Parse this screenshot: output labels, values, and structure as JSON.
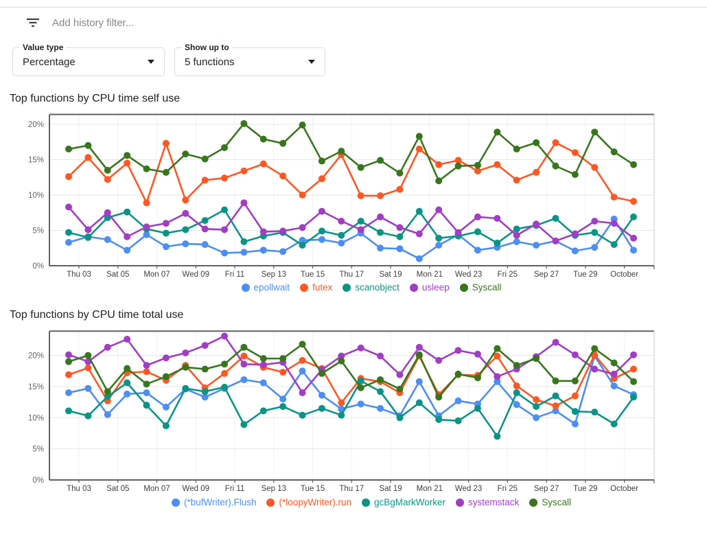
{
  "filter_bar": {
    "icon": "filter-list-icon",
    "placeholder": "Add history filter..."
  },
  "controls": {
    "value_type": {
      "label": "Value type",
      "value": "Percentage"
    },
    "show_up_to": {
      "label": "Show up to",
      "value": "5 functions"
    }
  },
  "chart_data": [
    {
      "type": "line",
      "title": "Top functions by CPU time self use",
      "xlabel": "",
      "ylabel": "",
      "ylim": [
        0,
        21.4
      ],
      "grid": true,
      "legend_position": "bottom",
      "y_tick_labels": [
        "0%",
        "5%",
        "10%",
        "15%",
        "20%"
      ],
      "x_tick_labels": [
        "Thu 03",
        "Sat 05",
        "Mon 07",
        "Wed 09",
        "Fri 11",
        "Sep 13",
        "Tue 15",
        "Thu 17",
        "Sat 19",
        "Mon 21",
        "Wed 23",
        "Fri 25",
        "Sep 27",
        "Tue 29",
        "October"
      ],
      "points_per_series": 30,
      "series": [
        {
          "name": "epollwait",
          "color": "#4D8EF5",
          "values": [
            3.3,
            4.1,
            3.7,
            2.2,
            4.4,
            2.7,
            3.1,
            3.0,
            1.8,
            1.9,
            2.2,
            2.0,
            3.6,
            3.7,
            3.2,
            4.6,
            2.5,
            2.4,
            1.0,
            2.9,
            4.4,
            2.2,
            2.6,
            3.4,
            2.9,
            3.5,
            2.1,
            2.6,
            6.6,
            2.2
          ]
        },
        {
          "name": "futex",
          "color": "#FF5722",
          "values": [
            12.6,
            15.3,
            12.2,
            14.5,
            8.9,
            17.3,
            9.3,
            12.1,
            12.4,
            13.4,
            14.4,
            12.7,
            10.0,
            12.3,
            15.7,
            9.9,
            9.9,
            10.8,
            16.5,
            14.3,
            14.9,
            13.4,
            14.3,
            12.1,
            13.2,
            17.4,
            16.0,
            13.9,
            9.7,
            9.1
          ]
        },
        {
          "name": "scanobject",
          "color": "#0A9486",
          "values": [
            4.7,
            4.0,
            6.8,
            7.6,
            5.2,
            4.6,
            5.1,
            6.4,
            7.9,
            3.4,
            4.2,
            4.7,
            2.9,
            4.9,
            4.3,
            6.3,
            4.7,
            4.1,
            7.7,
            3.9,
            4.2,
            4.8,
            3.2,
            5.2,
            5.7,
            6.7,
            4.3,
            4.7,
            3.0,
            6.9
          ]
        },
        {
          "name": "usleep",
          "color": "#A13DC6",
          "values": [
            8.3,
            5.1,
            7.5,
            4.1,
            5.5,
            6.0,
            7.4,
            5.2,
            5.1,
            8.9,
            4.8,
            4.9,
            5.4,
            7.7,
            6.3,
            5.1,
            6.9,
            5.4,
            4.5,
            7.9,
            4.7,
            6.9,
            6.7,
            4.3,
            5.9,
            3.5,
            4.5,
            6.3,
            6.0,
            3.9
          ]
        },
        {
          "name": "Syscall",
          "color": "#38761D",
          "values": [
            16.5,
            17.0,
            13.5,
            15.6,
            13.7,
            13.2,
            15.8,
            15.1,
            16.7,
            20.1,
            17.9,
            17.3,
            19.9,
            14.8,
            16.2,
            13.9,
            14.9,
            13.1,
            18.3,
            12.0,
            14.1,
            14.2,
            18.9,
            16.5,
            17.4,
            14.1,
            12.9,
            18.9,
            16.1,
            14.3
          ]
        }
      ]
    },
    {
      "type": "line",
      "title": "Top functions by CPU time total use",
      "xlabel": "",
      "ylabel": "",
      "ylim": [
        0,
        23.9
      ],
      "grid": true,
      "legend_position": "bottom",
      "y_tick_labels": [
        "0%",
        "5%",
        "10%",
        "15%",
        "20%"
      ],
      "x_tick_labels": [
        "Thu 03",
        "Sat 05",
        "Mon 07",
        "Wed 09",
        "Fri 11",
        "Sep 13",
        "Tue 15",
        "Thu 17",
        "Sat 19",
        "Mon 21",
        "Wed 23",
        "Fri 25",
        "Sep 27",
        "Tue 29",
        "October"
      ],
      "points_per_series": 30,
      "series": [
        {
          "name": "(*bufWriter).Flush",
          "color": "#4D8EF5",
          "values": [
            14.0,
            14.7,
            10.5,
            13.8,
            14.0,
            11.7,
            14.6,
            13.3,
            14.7,
            16.1,
            15.6,
            13.0,
            17.5,
            13.6,
            11.4,
            12.2,
            11.5,
            10.3,
            15.8,
            10.3,
            12.7,
            12.2,
            15.8,
            12.1,
            10.0,
            11.1,
            9.0,
            19.9,
            15.1,
            13.7
          ]
        },
        {
          "name": "(*loopyWriter).run",
          "color": "#FF5722",
          "values": [
            16.9,
            18.0,
            12.7,
            17.2,
            17.4,
            16.0,
            18.4,
            14.8,
            17.1,
            19.9,
            18.1,
            17.3,
            19.2,
            17.9,
            12.4,
            16.3,
            15.8,
            14.0,
            19.9,
            13.7,
            16.9,
            16.8,
            19.9,
            15.1,
            12.9,
            11.9,
            13.5,
            20.1,
            16.3,
            17.8
          ]
        },
        {
          "name": "gcBgMarkWorker",
          "color": "#0A9486",
          "values": [
            11.1,
            10.3,
            13.4,
            15.6,
            12.0,
            8.7,
            14.7,
            14.2,
            14.9,
            8.9,
            11.1,
            11.8,
            10.4,
            11.5,
            10.4,
            15.9,
            14.2,
            10.0,
            12.4,
            9.7,
            9.5,
            11.5,
            7.0,
            14.0,
            11.8,
            13.5,
            11.0,
            10.9,
            9.0,
            13.3
          ]
        },
        {
          "name": "systemstack",
          "color": "#A13DC6",
          "values": [
            20.1,
            19.0,
            21.3,
            22.6,
            18.4,
            19.6,
            20.4,
            21.6,
            23.1,
            18.6,
            18.5,
            18.9,
            14.0,
            17.7,
            19.9,
            21.2,
            19.9,
            16.9,
            21.3,
            19.2,
            20.8,
            20.2,
            16.6,
            17.8,
            19.8,
            22.1,
            20.1,
            17.8,
            17.0,
            20.1
          ]
        },
        {
          "name": "Syscall",
          "color": "#38761D",
          "values": [
            19.0,
            20.0,
            14.2,
            17.9,
            15.4,
            16.6,
            18.1,
            17.8,
            18.6,
            21.3,
            19.5,
            19.5,
            21.8,
            17.1,
            19.1,
            14.8,
            16.1,
            14.6,
            20.1,
            13.3,
            17.0,
            16.4,
            21.1,
            18.4,
            19.5,
            15.9,
            15.9,
            21.1,
            18.8,
            15.8
          ]
        }
      ]
    }
  ]
}
